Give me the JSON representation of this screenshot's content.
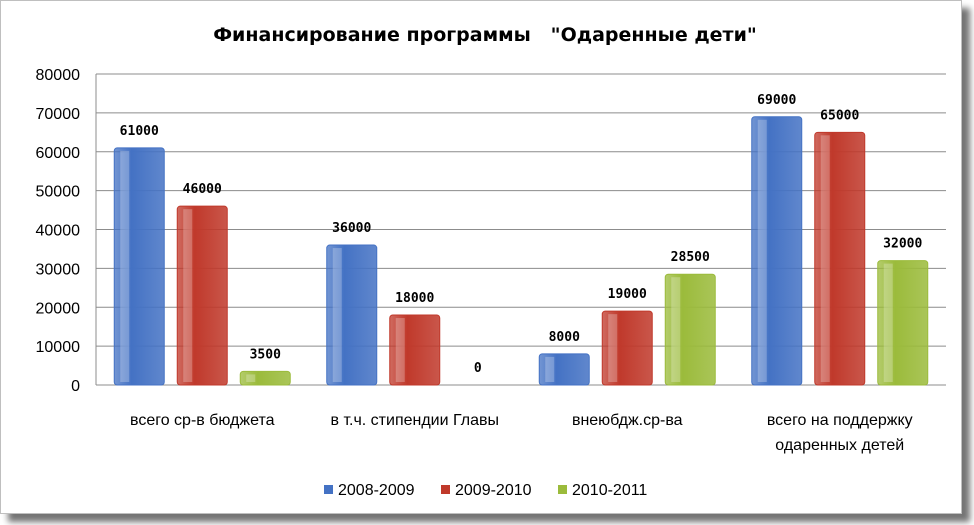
{
  "chart_data": {
    "type": "bar",
    "title": "Финансирование программы   \"Одаренные дети\"",
    "categories": [
      [
        "всего ср-в бюджета"
      ],
      [
        "в т.ч. стипендии Главы"
      ],
      [
        "внеюбдж.ср-ва"
      ],
      [
        "всего на поддержку",
        "одаренных детей"
      ]
    ],
    "series": [
      {
        "name": "2008-2009",
        "color": "#4472c4",
        "values": [
          61000,
          36000,
          8000,
          69000
        ]
      },
      {
        "name": "2009-2010",
        "color": "#c0392b",
        "values": [
          46000,
          18000,
          19000,
          65000
        ]
      },
      {
        "name": "2010-2011",
        "color": "#9bbb3b",
        "values": [
          3500,
          0,
          28500,
          32000
        ]
      }
    ],
    "ylim": [
      0,
      80000
    ],
    "yticks": [
      "0",
      "10000",
      "20000",
      "30000",
      "40000",
      "50000",
      "60000",
      "70000",
      "80000"
    ],
    "grid": true,
    "legend": "bottom"
  }
}
